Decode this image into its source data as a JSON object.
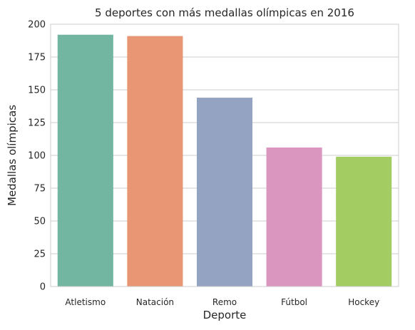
{
  "chart_data": {
    "type": "bar",
    "title": "5 deportes con más medallas olímpicas en 2016",
    "xlabel": "Deporte",
    "ylabel": "Medallas olímpicas",
    "categories": [
      "Atletismo",
      "Natación",
      "Remo",
      "Fútbol",
      "Hockey"
    ],
    "values": [
      192,
      191,
      144,
      106,
      99
    ],
    "colors": [
      "#72b6a1",
      "#e99675",
      "#95a3c3",
      "#db96c0",
      "#a3cd62"
    ],
    "ylim": [
      0,
      200
    ],
    "yticks": [
      0,
      25,
      50,
      75,
      100,
      125,
      150,
      175,
      200
    ],
    "grid": "horizontal",
    "style": {
      "axes_edge_color": "#cccccc",
      "grid_color": "#cccccc",
      "text_color": "#262626"
    }
  }
}
